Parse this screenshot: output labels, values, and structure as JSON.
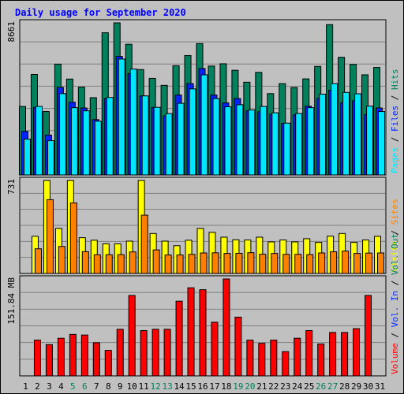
{
  "title": "Daily usage for September 2020",
  "colors": {
    "hits": "#00805c",
    "files": "#0024ff",
    "pages": "#00e6ff",
    "visits": "#ffff00",
    "sites": "#ff8000",
    "kbytes": "#ff0000",
    "background": "#c0c0c0",
    "grid": "#808080",
    "weekend": "#00805c",
    "weekday": "#000000"
  },
  "chart_data": [
    {
      "type": "bar",
      "panel": "top",
      "max_label": "8661",
      "ylim": [
        0,
        8661
      ],
      "categories": [
        "1",
        "2",
        "3",
        "4",
        "5",
        "6",
        "7",
        "8",
        "9",
        "10",
        "11",
        "12",
        "13",
        "14",
        "15",
        "16",
        "17",
        "18",
        "19",
        "20",
        "21",
        "22",
        "23",
        "24",
        "25",
        "26",
        "27",
        "28",
        "29",
        "30",
        "31"
      ],
      "weekend_days": [
        "5",
        "6",
        "12",
        "13",
        "19",
        "20",
        "26",
        "27"
      ],
      "right_label_parts": [
        {
          "text": "Pages",
          "color": "#00e6ff"
        },
        {
          "text": " / ",
          "color": "#000000"
        },
        {
          "text": "Files",
          "color": "#0024ff"
        },
        {
          "text": " / ",
          "color": "#000000"
        },
        {
          "text": "Hits",
          "color": "#00805c"
        }
      ],
      "series": [
        {
          "name": "Hits",
          "values": [
            3900,
            5720,
            3610,
            6310,
            5460,
            5000,
            4400,
            8100,
            8661,
            7440,
            6000,
            5500,
            5100,
            6220,
            6800,
            7480,
            6200,
            6330,
            5960,
            5280,
            5840,
            4630,
            5200,
            4980,
            5470,
            6180,
            8560,
            6700,
            6290,
            5700,
            6120
          ]
        },
        {
          "name": "Files",
          "values": [
            2480,
            3850,
            2270,
            4990,
            4140,
            3810,
            3150,
            4350,
            6750,
            5770,
            4500,
            3840,
            3360,
            4550,
            5200,
            6060,
            4550,
            4100,
            4350,
            3650,
            3600,
            3450,
            2930,
            3420,
            3910,
            4360,
            4820,
            4120,
            4230,
            3430,
            3810
          ]
        },
        {
          "name": "Pages",
          "values": [
            2040,
            3900,
            1950,
            4630,
            3830,
            3650,
            3060,
            4410,
            6600,
            6030,
            4500,
            3850,
            3490,
            4080,
            4900,
            5700,
            4350,
            3880,
            4000,
            3700,
            3900,
            3540,
            2950,
            3500,
            3830,
            4600,
            5200,
            4700,
            4620,
            3920,
            3610
          ]
        }
      ]
    },
    {
      "type": "bar",
      "panel": "middle",
      "max_label": "731",
      "ylim": [
        0,
        731
      ],
      "categories": [
        "1",
        "2",
        "3",
        "4",
        "5",
        "6",
        "7",
        "8",
        "9",
        "10",
        "11",
        "12",
        "13",
        "14",
        "15",
        "16",
        "17",
        "18",
        "19",
        "20",
        "21",
        "22",
        "23",
        "24",
        "25",
        "26",
        "27",
        "28",
        "29",
        "30",
        "31"
      ],
      "right_label_parts": [
        {
          "text": "Visits",
          "color": "#ffff00"
        },
        {
          "text": " / ",
          "color": "#000000"
        },
        {
          "text": "Sites",
          "color": "#ff8000"
        }
      ],
      "series": [
        {
          "name": "Visits",
          "values": [
            0,
            292,
            731,
            354,
            731,
            281,
            261,
            233,
            233,
            254,
            731,
            314,
            254,
            218,
            261,
            354,
            323,
            285,
            265,
            263,
            285,
            248,
            263,
            248,
            273,
            244,
            293,
            314,
            244,
            263,
            292
          ]
        },
        {
          "name": "Sites",
          "values": [
            0,
            194,
            580,
            212,
            554,
            171,
            147,
            147,
            148,
            169,
            458,
            185,
            145,
            145,
            150,
            161,
            162,
            157,
            158,
            163,
            151,
            157,
            150,
            150,
            148,
            161,
            170,
            176,
            157,
            160,
            161
          ]
        }
      ]
    },
    {
      "type": "bar",
      "panel": "bottom",
      "max_label": "151.84 MB",
      "ylim": [
        0,
        151.84
      ],
      "categories": [
        "1",
        "2",
        "3",
        "4",
        "5",
        "6",
        "7",
        "8",
        "9",
        "10",
        "11",
        "12",
        "13",
        "14",
        "15",
        "16",
        "17",
        "18",
        "19",
        "20",
        "21",
        "22",
        "23",
        "24",
        "25",
        "26",
        "27",
        "28",
        "29",
        "30",
        "31"
      ],
      "right_label_parts": [
        {
          "text": "Volume",
          "color": "#ff0000"
        },
        {
          "text": " / ",
          "color": "#000000"
        },
        {
          "text": "Vol. In",
          "color": "#0024ff"
        },
        {
          "text": " / ",
          "color": "#000000"
        },
        {
          "text": "Vol. Out",
          "color": "#00805c"
        }
      ],
      "series": [
        {
          "name": "Volume",
          "values": [
            0,
            56,
            49,
            59,
            65,
            64,
            52,
            40,
            73,
            126,
            71,
            73,
            73,
            117,
            138,
            135,
            84,
            151.84,
            92,
            56,
            51,
            56,
            38,
            59,
            71,
            50,
            68,
            68,
            74,
            126,
            0
          ]
        }
      ]
    }
  ]
}
